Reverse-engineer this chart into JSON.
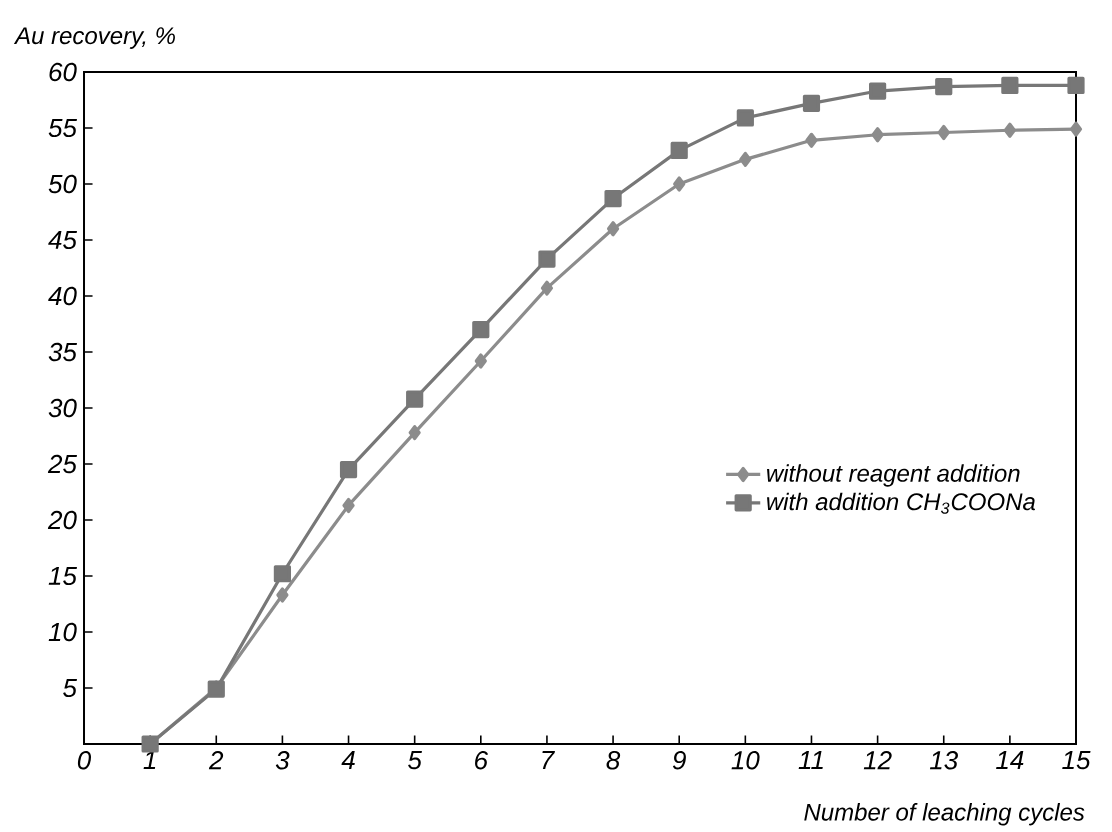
{
  "chart_data": {
    "type": "line",
    "ylabel": "Au recovery, %",
    "xlabel": "Number of leaching cycles",
    "x": [
      1,
      2,
      3,
      4,
      5,
      6,
      7,
      8,
      9,
      10,
      11,
      12,
      13,
      14,
      15
    ],
    "series": [
      {
        "name": "without reagent addition",
        "color": "#8c8c8c",
        "marker": "diamond",
        "values": [
          0,
          5,
          13.3,
          21.3,
          27.8,
          34.2,
          40.7,
          46,
          50,
          52.2,
          53.9,
          54.4,
          54.6,
          54.8,
          54.9
        ]
      },
      {
        "name": "*with addition* CH$_{3}$COONa",
        "color": "#777777",
        "marker": "square",
        "values": [
          0,
          4.9,
          15.2,
          24.5,
          30.8,
          37,
          43.3,
          48.7,
          53,
          55.9,
          57.2,
          58.3,
          58.7,
          58.8,
          58.8
        ]
      }
    ],
    "xlim": [
      0,
      15
    ],
    "ylim": [
      0,
      60
    ],
    "xticks": [
      0,
      1,
      2,
      3,
      4,
      5,
      6,
      7,
      8,
      9,
      10,
      11,
      12,
      13,
      14,
      15
    ],
    "yticks": [
      5,
      10,
      15,
      20,
      25,
      30,
      35,
      40,
      45,
      50,
      55,
      60
    ],
    "grid": false,
    "legend": "right",
    "line_style": "solid"
  }
}
